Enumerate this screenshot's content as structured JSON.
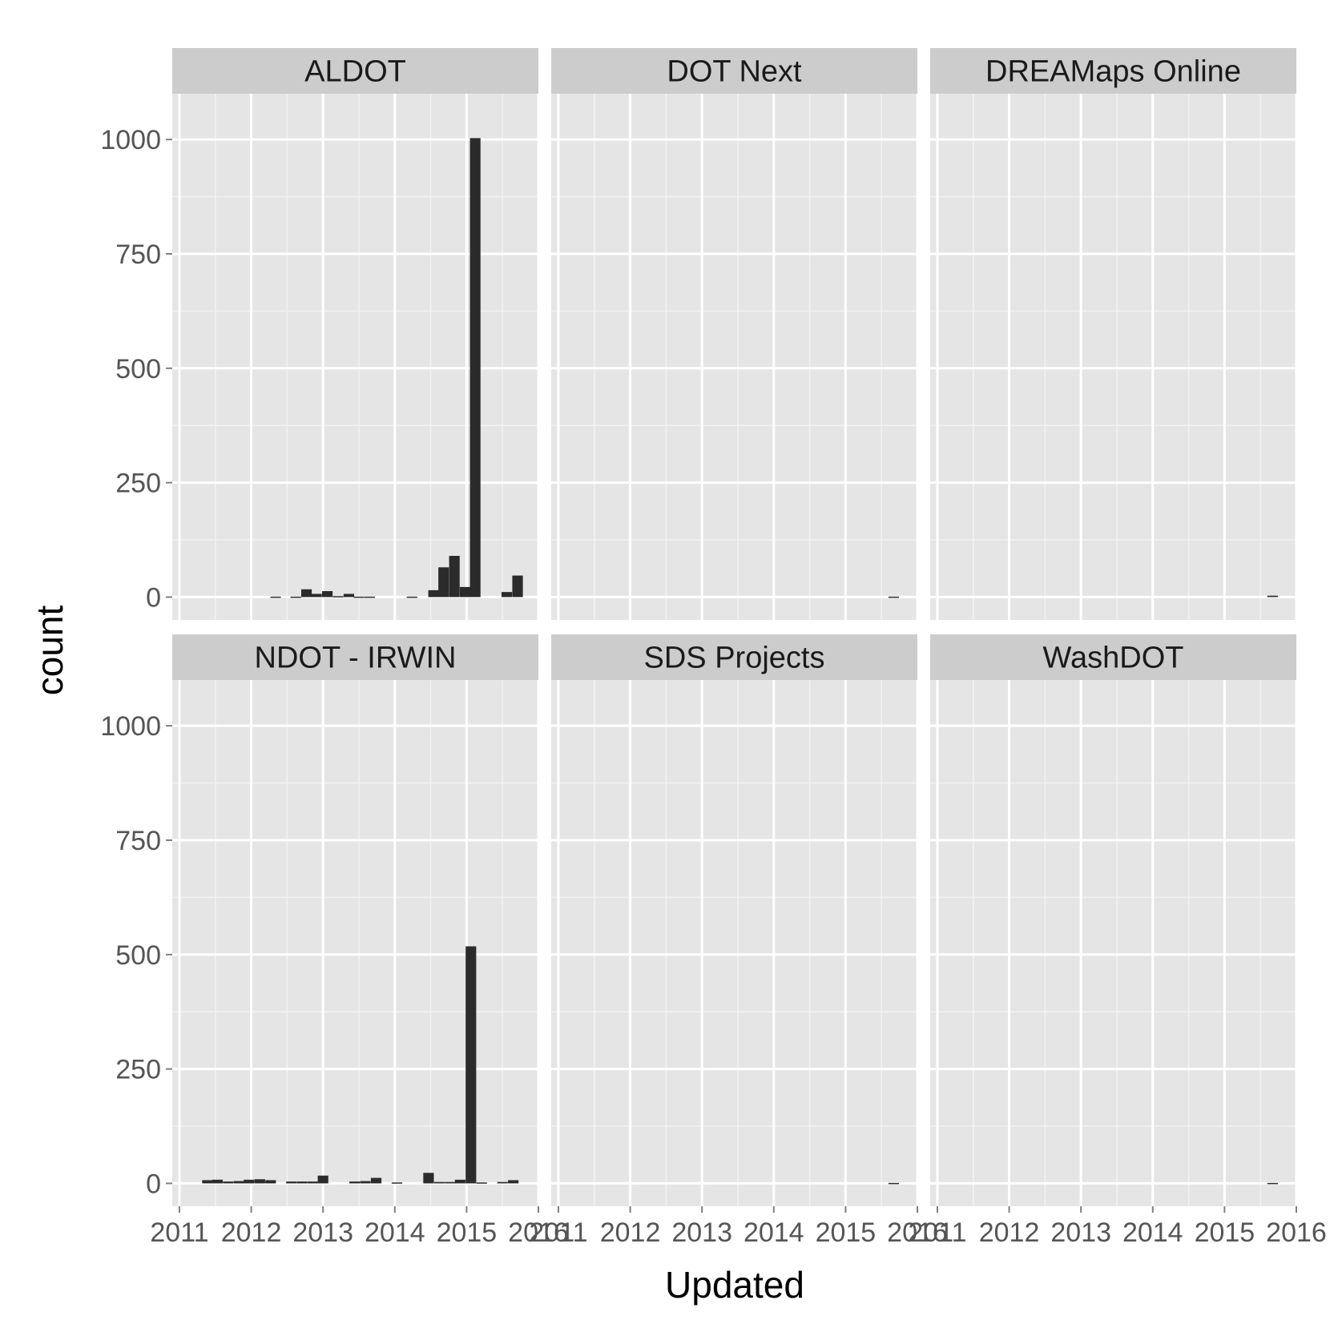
{
  "chart_data": {
    "type": "bar",
    "facet_layout": "2 rows x 3 columns",
    "xlabel": "Updated",
    "ylabel": "count",
    "ylim": [
      -50,
      1100
    ],
    "y_ticks": [
      0,
      250,
      500,
      750,
      1000
    ],
    "xlim": [
      2010.9,
      2016.0
    ],
    "x_ticks": [
      2011,
      2012,
      2013,
      2014,
      2015,
      2016
    ],
    "bin_width_years": 0.147,
    "colors": {
      "panel": "#e5e5e5",
      "strip": "#cccccc",
      "grid": "#ffffff",
      "bar": "#2b2b2b"
    },
    "grid": true,
    "panels": [
      {
        "name": "ALDOT",
        "bars": [
          {
            "x": 2012.34,
            "y": 1
          },
          {
            "x": 2012.62,
            "y": 1
          },
          {
            "x": 2012.77,
            "y": 17
          },
          {
            "x": 2012.91,
            "y": 7
          },
          {
            "x": 2013.06,
            "y": 13
          },
          {
            "x": 2013.21,
            "y": 2
          },
          {
            "x": 2013.36,
            "y": 7
          },
          {
            "x": 2013.5,
            "y": 1
          },
          {
            "x": 2013.65,
            "y": 1
          },
          {
            "x": 2014.24,
            "y": 1
          },
          {
            "x": 2014.54,
            "y": 15
          },
          {
            "x": 2014.68,
            "y": 65
          },
          {
            "x": 2014.83,
            "y": 90
          },
          {
            "x": 2014.98,
            "y": 22
          },
          {
            "x": 2015.12,
            "y": 1003
          },
          {
            "x": 2015.56,
            "y": 11
          },
          {
            "x": 2015.71,
            "y": 47
          }
        ]
      },
      {
        "name": "DOT Next",
        "bars": [
          {
            "x": 2015.67,
            "y": 1
          }
        ]
      },
      {
        "name": "DREAMaps Online",
        "bars": [
          {
            "x": 2015.67,
            "y": 3
          }
        ]
      },
      {
        "name": "NDOT - IRWIN",
        "bars": [
          {
            "x": 2011.39,
            "y": 7
          },
          {
            "x": 2011.53,
            "y": 8
          },
          {
            "x": 2011.68,
            "y": 4
          },
          {
            "x": 2011.83,
            "y": 5
          },
          {
            "x": 2011.97,
            "y": 8
          },
          {
            "x": 2012.12,
            "y": 9
          },
          {
            "x": 2012.27,
            "y": 7
          },
          {
            "x": 2012.56,
            "y": 4
          },
          {
            "x": 2012.71,
            "y": 4
          },
          {
            "x": 2012.86,
            "y": 4
          },
          {
            "x": 2013.0,
            "y": 17
          },
          {
            "x": 2013.44,
            "y": 4
          },
          {
            "x": 2013.59,
            "y": 5
          },
          {
            "x": 2013.74,
            "y": 12
          },
          {
            "x": 2014.03,
            "y": 2
          },
          {
            "x": 2014.47,
            "y": 23
          },
          {
            "x": 2014.62,
            "y": 3
          },
          {
            "x": 2014.77,
            "y": 3
          },
          {
            "x": 2014.91,
            "y": 8
          },
          {
            "x": 2015.06,
            "y": 518
          },
          {
            "x": 2015.21,
            "y": 2
          },
          {
            "x": 2015.5,
            "y": 3
          },
          {
            "x": 2015.65,
            "y": 7
          }
        ]
      },
      {
        "name": "SDS Projects",
        "bars": [
          {
            "x": 2015.67,
            "y": 1
          }
        ]
      },
      {
        "name": "WashDOT",
        "bars": [
          {
            "x": 2015.67,
            "y": 1
          }
        ]
      }
    ]
  }
}
